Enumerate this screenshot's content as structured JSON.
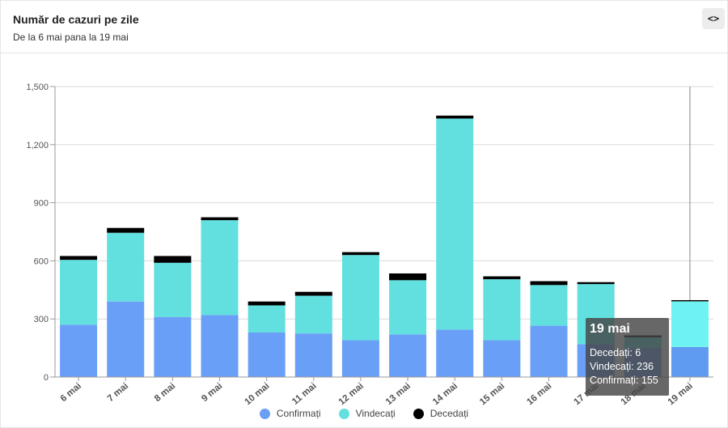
{
  "header": {
    "title": "Număr de cazuri pe zile",
    "subtitle": "De la 6 mai pana la 19 mai",
    "code_button_label": "<>"
  },
  "chart_data": {
    "type": "bar",
    "stacked": true,
    "categories": [
      "6 mai",
      "7 mai",
      "8 mai",
      "9 mai",
      "10 mai",
      "11 mai",
      "12 mai",
      "13 mai",
      "14 mai",
      "15 mai",
      "16 mai",
      "17 mai",
      "18 mai",
      "19 mai"
    ],
    "series": [
      {
        "name": "Confirmați",
        "color": "#6a9ff7",
        "values": [
          270,
          390,
          310,
          320,
          230,
          225,
          190,
          220,
          245,
          190,
          265,
          170,
          150,
          155
        ]
      },
      {
        "name": "Vindecați",
        "color": "#62dfdf",
        "values": [
          335,
          355,
          280,
          490,
          140,
          195,
          440,
          280,
          1090,
          315,
          210,
          310,
          55,
          236
        ]
      },
      {
        "name": "Decedați",
        "color": "#000000",
        "values": [
          20,
          25,
          35,
          15,
          20,
          20,
          15,
          35,
          15,
          15,
          20,
          10,
          10,
          6
        ]
      }
    ],
    "highlighted_category": "19 mai",
    "highlight_color_confirmed": "#5f9bf0",
    "highlight_color_recovered": "#6ff2f2",
    "ylim": [
      0,
      1500
    ],
    "yticks": [
      0,
      300,
      600,
      900,
      1200,
      1500
    ],
    "ytick_labels": [
      "0",
      "300",
      "600",
      "900",
      "1,200",
      "1,500"
    ],
    "grid": true,
    "legend_position": "bottom-center",
    "xlabel": "",
    "ylabel": ""
  },
  "tooltip": {
    "title": "19 mai",
    "lines": [
      "Decedați: 6",
      "Vindecați: 236",
      "Confirmați: 155"
    ]
  }
}
